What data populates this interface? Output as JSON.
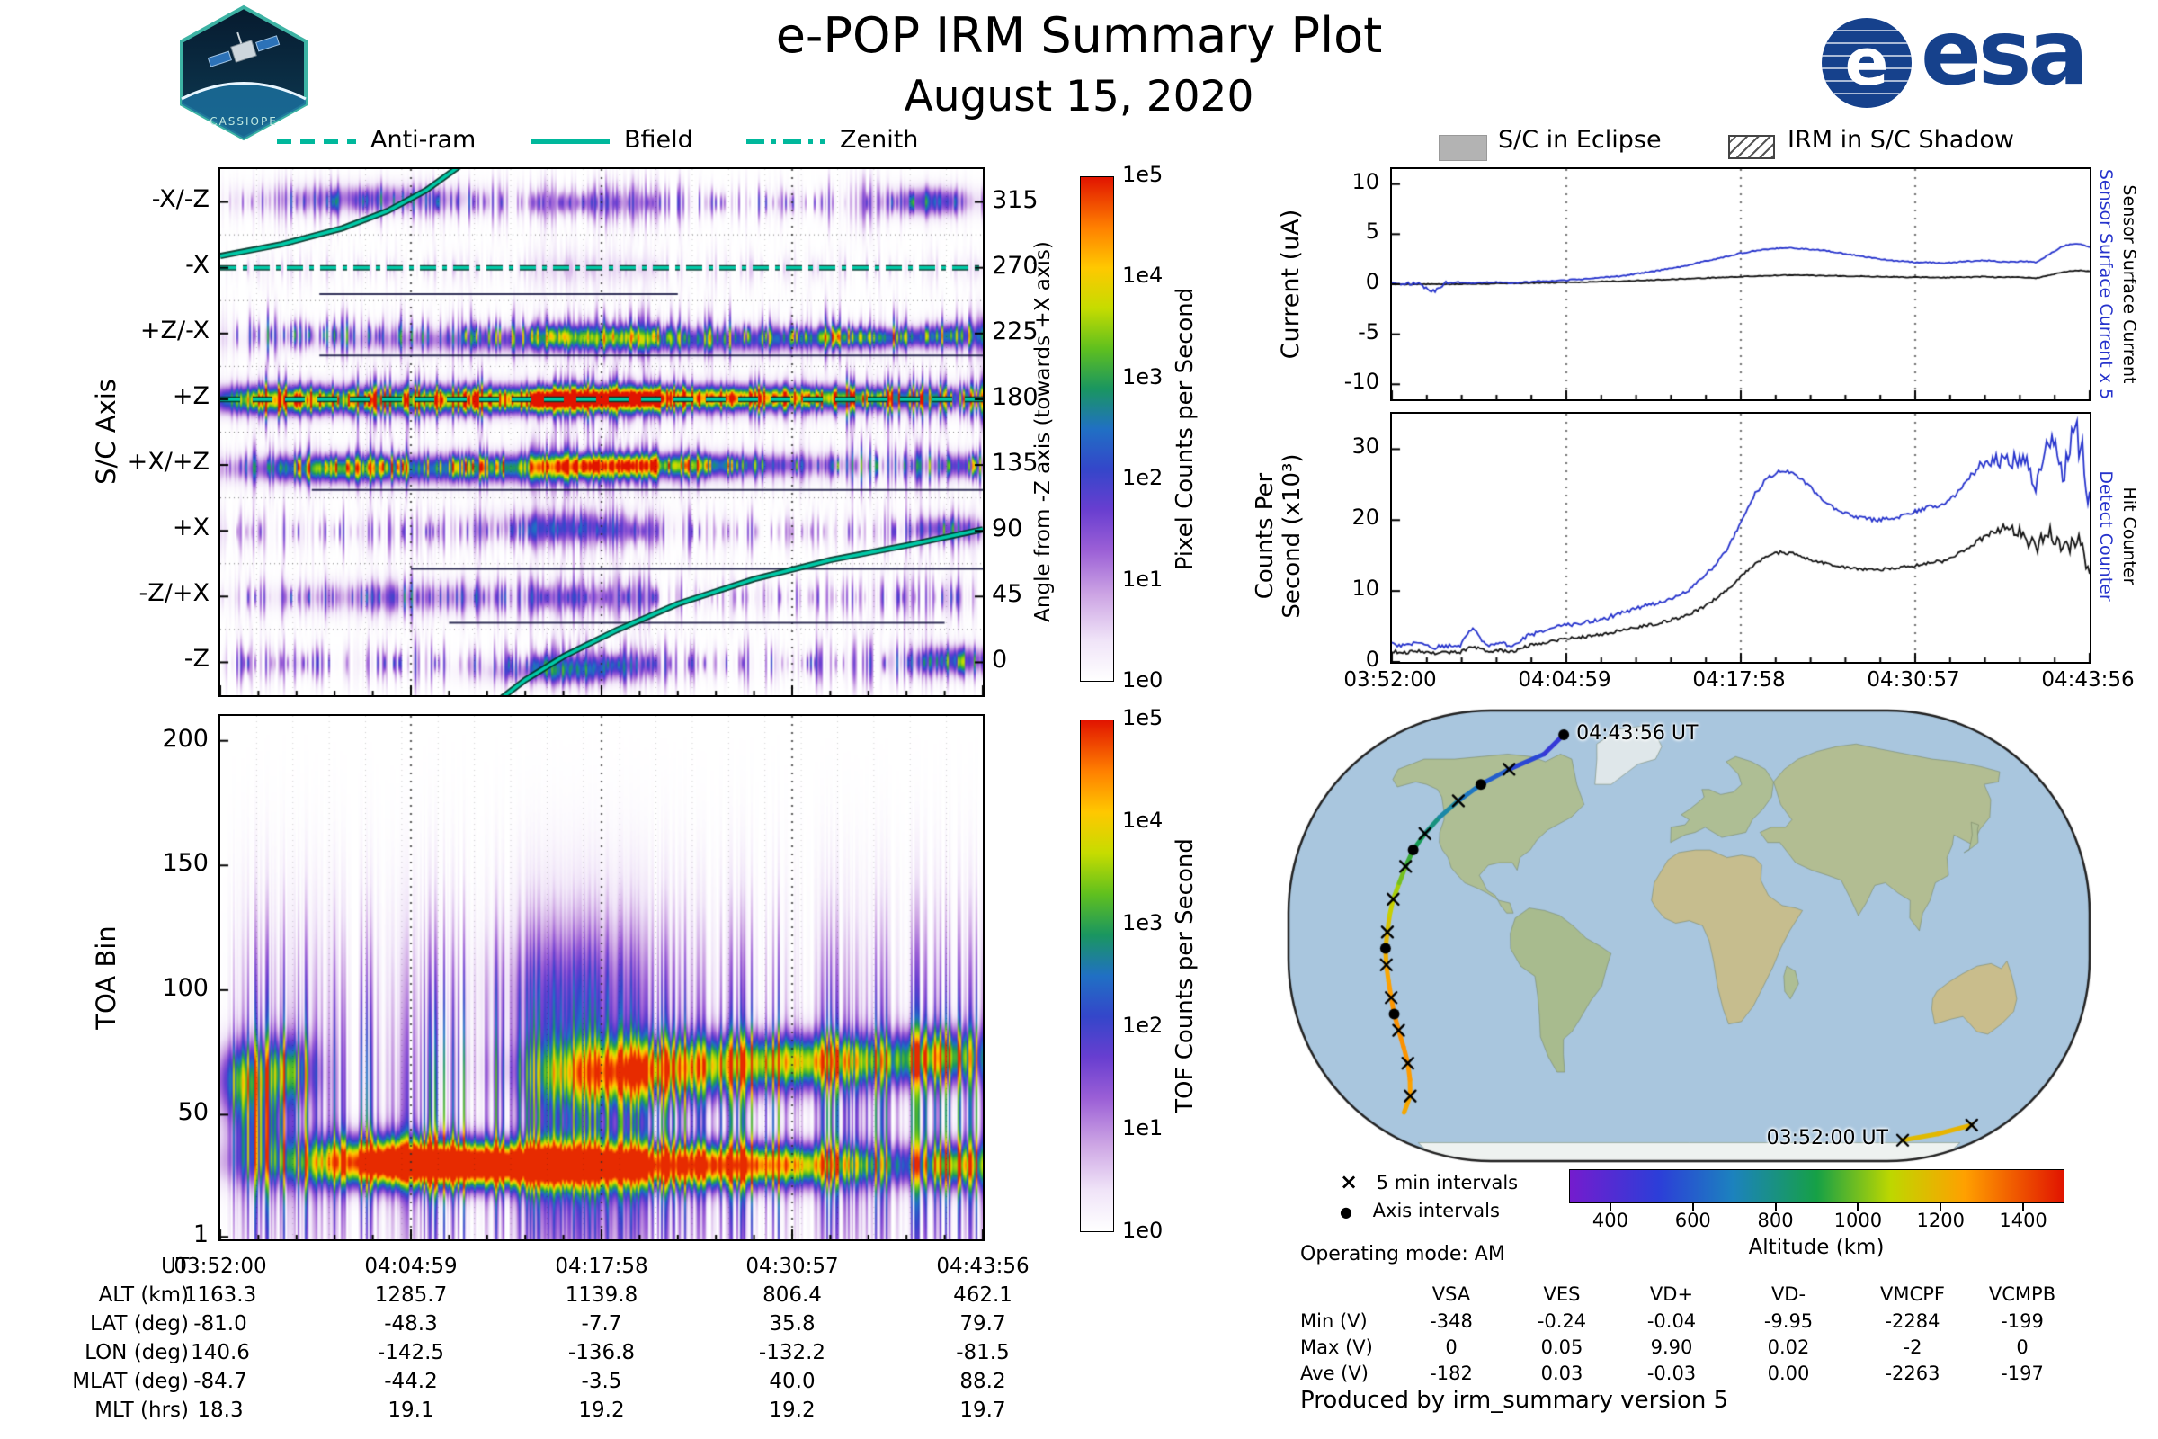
{
  "header": {
    "title": "e-POP IRM Summary Plot",
    "date": "August 15, 2020",
    "badge_name": "CASSIOPE",
    "esa_logo_text": "esa"
  },
  "spec_legend": {
    "anti_ram": "Anti-ram",
    "bfield": "Bfield",
    "zenith": "Zenith"
  },
  "eclipse_legend": {
    "eclipse": "S/C in Eclipse",
    "shadow": "IRM in S/C Shadow"
  },
  "time_ticks": [
    "03:52:00",
    "04:04:59",
    "04:17:58",
    "04:30:57",
    "04:43:56"
  ],
  "chart_data": [
    {
      "id": "sc-axis-spectrogram",
      "type": "heatmap",
      "ylabel": "S/C Axis",
      "y_categories": [
        "-X/-Z",
        "-X",
        "+Z/-X",
        "+Z",
        "+X/+Z",
        "+X",
        "-Z/+X",
        "-Z"
      ],
      "right_axis_label": "Angle from -Z axis (towards +X axis)",
      "right_ticks": [
        315,
        270,
        225,
        180,
        135,
        90,
        45,
        0
      ],
      "colorbar_label": "Pixel Counts per Second",
      "colorbar_ticks": [
        "1e5",
        "1e4",
        "1e3",
        "1e2",
        "1e1",
        "1e0"
      ],
      "x_range": [
        "03:52:00",
        "04:43:56"
      ],
      "value_scale": "log10 pixel counts per second, 1e0 to 1e5",
      "legend": [
        {
          "label": "Anti-ram",
          "dash": "dashed"
        },
        {
          "label": "Bfield",
          "dash": "solid"
        },
        {
          "label": "Zenith",
          "dash": "dashdot"
        }
      ],
      "overlays": {
        "anti_ram_angle": 180,
        "zenith_angle": 270,
        "bfield_path": [
          [
            0,
            278
          ],
          [
            0.08,
            286
          ],
          [
            0.16,
            297
          ],
          [
            0.22,
            309
          ],
          [
            0.27,
            323
          ],
          [
            0.315,
            340
          ],
          null,
          [
            0.36,
            -28
          ],
          [
            0.4,
            -12
          ],
          [
            0.45,
            4
          ],
          [
            0.52,
            22
          ],
          [
            0.6,
            40
          ],
          [
            0.7,
            57
          ],
          [
            0.8,
            70
          ],
          [
            0.9,
            80
          ],
          [
            1,
            91
          ]
        ]
      },
      "hot_regions": [
        [
          0.5,
          181,
          0.5,
          9,
          2.6
        ],
        [
          0.7,
          182,
          0.28,
          6,
          1.6
        ],
        [
          0.07,
          180,
          0.07,
          9,
          2.2
        ],
        [
          0.3,
          178,
          0.2,
          8,
          1.2
        ],
        [
          0.35,
          133,
          0.28,
          9,
          2.3
        ],
        [
          0.6,
          136,
          0.18,
          7,
          1.8
        ],
        [
          0.14,
          133,
          0.08,
          8,
          1.6
        ],
        [
          0.97,
          135,
          0.04,
          8,
          1.6
        ],
        [
          0.55,
          221,
          0.33,
          8,
          1.9
        ],
        [
          0.85,
          223,
          0.1,
          6,
          1.6
        ],
        [
          0.96,
          225,
          0.04,
          8,
          1.5
        ],
        [
          0.2,
          318,
          0.12,
          9,
          1.2
        ],
        [
          0.93,
          316,
          0.05,
          9,
          1.7
        ],
        [
          0.95,
          92,
          0.04,
          8,
          1.5
        ],
        [
          0.45,
          95,
          0.1,
          10,
          0.9
        ],
        [
          0.96,
          2,
          0.05,
          9,
          1.9
        ],
        [
          0.45,
          -6,
          0.09,
          8,
          1.4
        ],
        [
          0.25,
          45,
          0.15,
          10,
          0.8
        ]
      ]
    },
    {
      "id": "toa-spectrogram",
      "type": "heatmap",
      "ylabel": "TOA Bin",
      "yticks": [
        200,
        150,
        100,
        50,
        1
      ],
      "ylim": [
        0,
        210
      ],
      "colorbar_label": "TOF Counts per Second",
      "colorbar_ticks": [
        "1e5",
        "1e4",
        "1e3",
        "1e2",
        "1e1",
        "1e0"
      ],
      "x_range": [
        "03:52:00",
        "04:43:56"
      ],
      "value_scale": "log10 TOF counts per second, 1e0 to 1e5",
      "hot_regions": [
        [
          0.45,
          30,
          0.3,
          9,
          2.9
        ],
        [
          0.72,
          30,
          0.2,
          8,
          2.7
        ],
        [
          0.22,
          33,
          0.12,
          10,
          2.4
        ],
        [
          0.97,
          30,
          0.05,
          9,
          2.5
        ],
        [
          0.33,
          30,
          0.18,
          8,
          2.7
        ],
        [
          0.62,
          70,
          0.16,
          12,
          2.3
        ],
        [
          0.8,
          72,
          0.13,
          10,
          2.6
        ],
        [
          0.95,
          74,
          0.06,
          11,
          2.4
        ],
        [
          0.52,
          66,
          0.1,
          11,
          1.8
        ],
        [
          0.025,
          65,
          0.03,
          14,
          2.2
        ],
        [
          0.085,
          68,
          0.035,
          13,
          2.4
        ],
        [
          0.05,
          45,
          0.04,
          18,
          1.5
        ],
        [
          0.45,
          100,
          0.1,
          25,
          0.6
        ]
      ]
    },
    {
      "id": "sensor-current",
      "type": "line",
      "ylabel": "Current (uA)",
      "ylim": [
        -11.5,
        11.5
      ],
      "yticks": [
        10,
        5,
        0,
        -5,
        -10
      ],
      "x_ticks": [
        "03:52:00",
        "04:04:59",
        "04:17:58",
        "04:30:57",
        "04:43:56"
      ],
      "series": [
        {
          "name": "Sensor Surface Current x 5",
          "color": "#2633cc",
          "values": [
            0.1,
            0.1,
            0.0,
            -0.8,
            0.1,
            0.2,
            0.1,
            0.2,
            0.2,
            0.1,
            0.2,
            0.3,
            0.3,
            0.4,
            0.5,
            0.6,
            0.7,
            0.8,
            1.0,
            1.2,
            1.4,
            1.6,
            1.9,
            2.2,
            2.5,
            2.8,
            3.1,
            3.3,
            3.5,
            3.6,
            3.6,
            3.5,
            3.4,
            3.2,
            3.0,
            2.8,
            2.6,
            2.4,
            2.3,
            2.2,
            2.2,
            2.1,
            2.2,
            2.3,
            2.4,
            2.3,
            2.2,
            2.3,
            2.2,
            3.0,
            3.8,
            4.1,
            3.7
          ]
        },
        {
          "name": "Sensor Surface Current",
          "color": "#111111",
          "values": [
            0,
            0,
            0,
            0,
            0,
            0,
            0.05,
            0.05,
            0.1,
            0.1,
            0.1,
            0.15,
            0.15,
            0.2,
            0.2,
            0.25,
            0.3,
            0.3,
            0.35,
            0.4,
            0.45,
            0.5,
            0.55,
            0.6,
            0.65,
            0.7,
            0.75,
            0.8,
            0.85,
            0.9,
            0.9,
            0.9,
            0.85,
            0.85,
            0.8,
            0.8,
            0.75,
            0.75,
            0.7,
            0.7,
            0.7,
            0.65,
            0.7,
            0.7,
            0.75,
            0.7,
            0.7,
            0.7,
            0.6,
            0.9,
            1.2,
            1.4,
            1.3
          ]
        }
      ]
    },
    {
      "id": "counters",
      "type": "line",
      "ylabel_lines": [
        "Counts Per",
        "Second (x10³)"
      ],
      "ylim": [
        0,
        35
      ],
      "yticks": [
        0,
        10,
        20,
        30
      ],
      "x_ticks": [
        "03:52:00",
        "04:04:59",
        "04:17:58",
        "04:30:57",
        "04:43:56"
      ],
      "series": [
        {
          "name": "Detect Counter",
          "color": "#2633cc",
          "values": [
            2.5,
            2.2,
            2.8,
            2.0,
            2.3,
            2.1,
            4.8,
            2.4,
            2.6,
            2.3,
            3.6,
            4.2,
            4.8,
            5.2,
            5.5,
            5.8,
            6.2,
            6.8,
            7.4,
            8.0,
            8.4,
            9.0,
            10.0,
            11.5,
            13.5,
            16.0,
            19.5,
            23.5,
            26.0,
            27.0,
            26.5,
            25.0,
            23.0,
            21.5,
            20.8,
            20.3,
            20.0,
            20.2,
            20.6,
            21.2,
            21.8,
            22.0,
            23.5,
            26.0,
            28.0,
            28.5,
            28.0,
            29.0,
            25.5,
            31.0,
            27.0,
            32.5,
            24.0
          ]
        },
        {
          "name": "Hit Counter",
          "color": "#111111",
          "values": [
            1.5,
            1.3,
            1.6,
            1.2,
            1.4,
            1.3,
            2.2,
            1.5,
            1.6,
            1.4,
            2.2,
            2.6,
            3.0,
            3.3,
            3.5,
            3.7,
            4.0,
            4.4,
            4.8,
            5.2,
            5.5,
            6.0,
            6.6,
            7.5,
            8.8,
            10.2,
            12.0,
            13.8,
            15.0,
            15.5,
            15.2,
            14.5,
            14.0,
            13.6,
            13.3,
            13.1,
            13.0,
            13.1,
            13.3,
            13.6,
            14.0,
            14.2,
            15.0,
            16.2,
            17.5,
            18.5,
            19.0,
            18.0,
            16.0,
            19.0,
            15.0,
            18.0,
            13.5
          ]
        }
      ]
    },
    {
      "id": "ground-track-map",
      "type": "map",
      "start_label": "03:52:00 UT",
      "end_label": "04:43:56 UT",
      "marker_legend": [
        {
          "marker": "×",
          "label": "5 min intervals"
        },
        {
          "marker": "●",
          "label": "Axis intervals"
        }
      ],
      "operating_mode": "Operating mode: AM",
      "colorbar_label": "Altitude (km)",
      "colorbar_ticks": [
        400,
        600,
        800,
        1000,
        1200,
        1400
      ],
      "colorbar_range": [
        300,
        1500
      ],
      "track": [
        [
          140.6,
          -81,
          1163,
          "x"
        ],
        [
          160,
          -78.5,
          1185,
          ""
        ],
        [
          176,
          -75,
          1205,
          "x"
        ],
        [
          -170,
          -70,
          1226,
          ""
        ],
        [
          -158,
          -63.5,
          1246,
          "x"
        ],
        [
          -151,
          -57,
          1262,
          ""
        ],
        [
          -146,
          -50.5,
          1276,
          "x"
        ],
        [
          -143,
          -44,
          1284,
          ""
        ],
        [
          -141,
          -37.5,
          1286,
          "x"
        ],
        [
          -139.5,
          -31,
          1282,
          "dot"
        ],
        [
          -138,
          -24.5,
          1272,
          "x"
        ],
        [
          -137,
          -18,
          1256,
          ""
        ],
        [
          -136.5,
          -11.5,
          1233,
          "x"
        ],
        [
          -136,
          -5,
          1204,
          "dot"
        ],
        [
          -135,
          1.5,
          1169,
          "x"
        ],
        [
          -134.5,
          8,
          1128,
          ""
        ],
        [
          -134,
          14.5,
          1081,
          "x"
        ],
        [
          -133,
          21,
          1029,
          ""
        ],
        [
          -132.5,
          27.5,
          972,
          "x"
        ],
        [
          -132,
          34,
          908,
          "dot"
        ],
        [
          -130,
          40.5,
          841,
          "x"
        ],
        [
          -127,
          47,
          770,
          ""
        ],
        [
          -122,
          53.5,
          700,
          "x"
        ],
        [
          -115,
          60,
          633,
          "dot"
        ],
        [
          -104,
          66,
          568,
          "x"
        ],
        [
          -88,
          72,
          510,
          ""
        ],
        [
          -81.5,
          79.7,
          462,
          "end"
        ]
      ]
    }
  ],
  "ephemeris_table": {
    "rows": [
      {
        "label": "UT",
        "values": [
          "03:52:00",
          "04:04:59",
          "04:17:58",
          "04:30:57",
          "04:43:56"
        ]
      },
      {
        "label": "ALT (km)",
        "values": [
          "1163.3",
          "1285.7",
          "1139.8",
          "806.4",
          "462.1"
        ]
      },
      {
        "label": "LAT (deg)",
        "values": [
          "-81.0",
          "-48.3",
          "-7.7",
          "35.8",
          "79.7"
        ]
      },
      {
        "label": "LON (deg)",
        "values": [
          "140.6",
          "-142.5",
          "-136.8",
          "-132.2",
          "-81.5"
        ]
      },
      {
        "label": "MLAT (deg)",
        "values": [
          "-84.7",
          "-44.2",
          "-3.5",
          "40.0",
          "88.2"
        ]
      },
      {
        "label": "MLT (hrs)",
        "values": [
          "18.3",
          "19.1",
          "19.2",
          "19.2",
          "19.7"
        ]
      }
    ]
  },
  "voltage_table": {
    "columns": [
      "VSA",
      "VES",
      "VD+",
      "VD-",
      "VMCPF",
      "VCMPB"
    ],
    "rows": [
      {
        "label": "Min (V)",
        "values": [
          "-348",
          "-0.24",
          "-0.04",
          "-9.95",
          "-2284",
          "-199"
        ]
      },
      {
        "label": "Max (V)",
        "values": [
          "0",
          "0.05",
          "9.90",
          "0.02",
          "-2",
          "0"
        ]
      },
      {
        "label": "Ave (V)",
        "values": [
          "-182",
          "0.03",
          "-0.03",
          "0.00",
          "-2263",
          "-197"
        ]
      }
    ]
  },
  "footer": {
    "text": "Produced by irm_summary version 5"
  }
}
